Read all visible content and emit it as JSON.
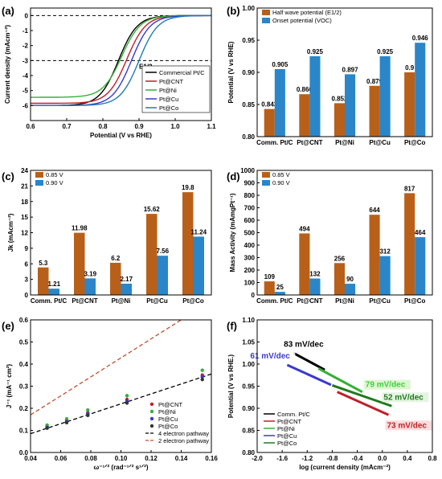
{
  "panel_labels": [
    "(a)",
    "(b)",
    "(c)",
    "(d)",
    "(e)",
    "(f)"
  ],
  "series_names": [
    "Commercial Pt/C",
    "Pt@CNT",
    "Pt@Ni",
    "Pt@Cu",
    "Pt@Co"
  ],
  "series_colors": [
    "#000000",
    "#c0202a",
    "#35b035",
    "#3a3acc",
    "#1e7ab8"
  ],
  "chart_data": [
    {
      "id": "a",
      "type": "line",
      "xlabel": "Potential (V vs RHE)",
      "ylabel": "Current density (mAcm⁻²)",
      "xlim": [
        0.6,
        1.1
      ],
      "ylim": [
        -7,
        0.5
      ],
      "xticks": [
        0.6,
        0.7,
        0.8,
        0.9,
        1.0,
        1.1
      ],
      "yticks": [
        0,
        -1,
        -2,
        -3,
        -4,
        -5,
        -6
      ],
      "hlines": [
        0,
        -3
      ],
      "annotation": "E1/2",
      "legend": "bottom-right",
      "series": [
        {
          "name": "Commercial Pt/C",
          "color": "#000000",
          "e_half": 0.843,
          "onset": 0.905,
          "jlim": -6.0
        },
        {
          "name": "Pt@CNT",
          "color": "#c0202a",
          "e_half": 0.866,
          "onset": 0.925,
          "jlim": -5.85
        },
        {
          "name": "Pt@Ni",
          "color": "#35b035",
          "e_half": 0.852,
          "onset": 0.897,
          "jlim": -5.45
        },
        {
          "name": "Pt@Cu",
          "color": "#3a3acc",
          "e_half": 0.879,
          "onset": 0.925,
          "jlim": -6.0
        },
        {
          "name": "Pt@Co",
          "color": "#1e7ab8",
          "e_half": 0.9,
          "onset": 0.946,
          "jlim": -6.0
        }
      ]
    },
    {
      "id": "b",
      "type": "bar",
      "ylabel": "Potential (V vs RHE)",
      "ylim": [
        0.8,
        1.0
      ],
      "yticks": [
        0.8,
        0.85,
        0.9,
        0.95,
        1.0
      ],
      "categories": [
        "Comm. Pt/C",
        "Pt@CNT",
        "Pt@Ni",
        "Pt@Cu",
        "Pt@Co"
      ],
      "legend": "top-left",
      "series": [
        {
          "name": "Half wave potential (E1/2)",
          "color": "#b8601a",
          "values": [
            0.843,
            0.866,
            0.852,
            0.879,
            0.9
          ],
          "labels": [
            "0.843",
            "0.866",
            "0.852",
            "0.879",
            "0.9"
          ]
        },
        {
          "name": "Onset potential (VOC)",
          "color": "#2a86c8",
          "values": [
            0.905,
            0.925,
            0.897,
            0.925,
            0.946
          ],
          "labels": [
            "0.905",
            "0.925",
            "0.897",
            "0.925",
            "0.946"
          ]
        }
      ]
    },
    {
      "id": "c",
      "type": "bar",
      "ylabel": "Jk (mAcm⁻²)",
      "ylim": [
        0,
        24
      ],
      "yticks": [
        0,
        3,
        6,
        9,
        12,
        15,
        18,
        21,
        24
      ],
      "categories": [
        "Comm. Pt/C",
        "Pt@CNT",
        "Pt@Ni",
        "Pt@Cu",
        "Pt@Co"
      ],
      "legend": "top-left",
      "series": [
        {
          "name": "0.85 V",
          "color": "#b8601a",
          "values": [
            5.3,
            11.98,
            6.2,
            15.62,
            19.8
          ],
          "labels": [
            "5.3",
            "11.98",
            "6.2",
            "15.62",
            "19.8"
          ]
        },
        {
          "name": "0.90 V",
          "color": "#2a86c8",
          "values": [
            1.21,
            3.19,
            2.17,
            7.56,
            11.24
          ],
          "labels": [
            "1.21",
            "3.19",
            "2.17",
            "7.56",
            "11.24"
          ]
        }
      ]
    },
    {
      "id": "d",
      "type": "bar",
      "ylabel": "Mass Activity (mAmgPt⁻¹)",
      "ylim": [
        0,
        1000
      ],
      "yticks": [
        0,
        100,
        200,
        300,
        400,
        500,
        600,
        700,
        800,
        900,
        1000
      ],
      "categories": [
        "Comm. Pt/C",
        "Pt@CNT",
        "Pt@Ni",
        "Pt@Cu",
        "Pt@Co"
      ],
      "legend": "top-left",
      "series": [
        {
          "name": "0.85 V",
          "color": "#b8601a",
          "values": [
            109,
            494,
            256,
            644,
            817
          ],
          "labels": [
            "109",
            "494",
            "256",
            "644",
            "817"
          ]
        },
        {
          "name": "0.90 V",
          "color": "#2a86c8",
          "values": [
            25,
            132,
            90,
            312,
            464
          ],
          "labels": [
            "25",
            "132",
            "90",
            "312",
            "464"
          ]
        }
      ]
    },
    {
      "id": "e",
      "type": "scatter",
      "xlabel": "ω⁻¹ᐟ² (rad⁻¹ᐟ² s¹ᐟ²)",
      "ylabel": "J⁻¹ (mA⁻¹ cm²)",
      "xlim": [
        0.04,
        0.16
      ],
      "ylim": [
        0,
        0.6
      ],
      "xticks": [
        0.04,
        0.06,
        0.08,
        0.1,
        0.12,
        0.14,
        0.16
      ],
      "yticks": [
        0,
        0.1,
        0.2,
        0.3,
        0.4,
        0.5,
        0.6
      ],
      "legend": "bottom-right",
      "x": [
        0.051,
        0.064,
        0.078,
        0.104,
        0.154
      ],
      "series": [
        {
          "name": "Pt@CNT",
          "color": "#c0202a",
          "values": [
            0.118,
            0.145,
            0.18,
            0.24,
            0.35
          ]
        },
        {
          "name": "Pt@Ni",
          "color": "#35b035",
          "values": [
            0.124,
            0.152,
            0.192,
            0.257,
            0.372
          ]
        },
        {
          "name": "Pt@Cu",
          "color": "#3a3acc",
          "values": [
            0.114,
            0.14,
            0.175,
            0.232,
            0.342
          ]
        },
        {
          "name": "Pt@Co",
          "color": "#333333",
          "values": [
            0.11,
            0.135,
            0.168,
            0.224,
            0.33
          ]
        }
      ],
      "reference_lines": [
        {
          "name": "4 electron pathway",
          "color": "#000000",
          "points": [
            [
              0.04,
              0.085
            ],
            [
              0.16,
              0.355
            ]
          ]
        },
        {
          "name": "2 electron pathway",
          "color": "#c05030",
          "points": [
            [
              0.04,
              0.17
            ],
            [
              0.14,
              0.6
            ]
          ]
        }
      ]
    },
    {
      "id": "f",
      "type": "line",
      "xlabel": "log (current density (mAcm⁻²)",
      "ylabel": "Potential (V vs RHE.)",
      "xlim": [
        -2.0,
        0.8
      ],
      "ylim": [
        0.8,
        1.1
      ],
      "xticks": [
        -2.0,
        -1.6,
        -1.2,
        -0.8,
        -0.4,
        0.0,
        0.4,
        0.8
      ],
      "yticks": [
        0.8,
        0.85,
        0.9,
        0.95,
        1.0,
        1.05,
        1.1
      ],
      "legend": "bottom-left",
      "series": [
        {
          "name": "Comm. Pt/C",
          "color": "#000000",
          "points": [
            [
              -1.42,
              1.025
            ],
            [
              -0.92,
              0.987
            ]
          ],
          "slope_label": "83 mV/dec"
        },
        {
          "name": "Pt@CNT",
          "color": "#c0202a",
          "points": [
            [
              -0.72,
              0.937
            ],
            [
              0.1,
              0.885
            ]
          ],
          "slope_label": "73 mV/dec"
        },
        {
          "name": "Pt@Ni",
          "color": "#35b035",
          "points": [
            [
              -1.02,
              0.99
            ],
            [
              -0.32,
              0.937
            ]
          ],
          "slope_label": "79 mV/dec"
        },
        {
          "name": "Pt@Cu",
          "color": "#3a3acc",
          "points": [
            [
              -1.52,
              0.998
            ],
            [
              -0.82,
              0.953
            ]
          ],
          "slope_label": "61 mV/dec"
        },
        {
          "name": "Pt@Co",
          "color": "#1f7a1f",
          "points": [
            [
              -0.8,
              0.952
            ],
            [
              0.15,
              0.905
            ]
          ],
          "slope_label": "52 mV/dec"
        }
      ]
    }
  ]
}
